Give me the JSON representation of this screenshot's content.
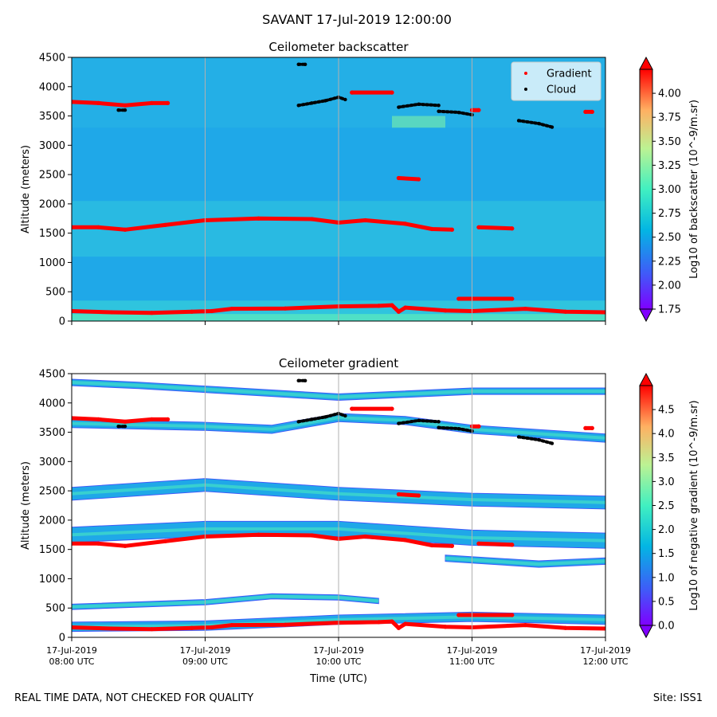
{
  "title": "SAVANT 17-Jul-2019 12:00:00",
  "footer": {
    "left": "REAL TIME DATA, NOT CHECKED FOR QUALITY",
    "right": "Site: ISS1"
  },
  "colors": {
    "gradient": "#ff0000",
    "cloud": "#000000",
    "background": "#1fa8e8"
  },
  "x_tick_date": "17-Jul-2019",
  "chart_data": [
    {
      "type": "heatmap",
      "title": "Ceilometer backscatter",
      "xlabel": "",
      "ylabel": "Altitude (meters)",
      "xlim": [
        8,
        12
      ],
      "ylim": [
        0,
        4500
      ],
      "yticks": [
        0,
        500,
        1000,
        1500,
        2000,
        2500,
        3000,
        3500,
        4000,
        4500
      ],
      "xticks": [
        {
          "value": 8,
          "label": "08:00 UTC"
        },
        {
          "value": 9,
          "label": "09:00 UTC"
        },
        {
          "value": 10,
          "label": "10:00 UTC"
        },
        {
          "value": 11,
          "label": "11:00 UTC"
        },
        {
          "value": 12,
          "label": "12:00 UTC"
        }
      ],
      "grid_x": true,
      "legend": {
        "placement": "top-right",
        "entries": [
          "Gradient",
          "Cloud"
        ]
      },
      "colorbar": {
        "label": "Log10 of backscatter (10^-9/m.sr)",
        "range": [
          1.75,
          4.25
        ],
        "ticks": [
          "1.75",
          "2.00",
          "2.25",
          "2.50",
          "2.75",
          "3.00",
          "3.25",
          "3.50",
          "3.75",
          "4.00"
        ]
      },
      "series": [
        {
          "name": "Gradient",
          "layer": "surface",
          "points": [
            [
              8,
              170
            ],
            [
              8.3,
              150
            ],
            [
              8.6,
              140
            ],
            [
              8.9,
              160
            ],
            [
              9.05,
              170
            ],
            [
              9.2,
              210
            ],
            [
              9.6,
              215
            ],
            [
              10.0,
              250
            ],
            [
              10.3,
              260
            ],
            [
              10.4,
              270
            ],
            [
              10.45,
              160
            ],
            [
              10.5,
              230
            ],
            [
              10.8,
              180
            ],
            [
              11.0,
              170
            ],
            [
              11.4,
              210
            ],
            [
              11.7,
              160
            ],
            [
              12.0,
              150
            ]
          ]
        },
        {
          "name": "Gradient",
          "layer": "boundary",
          "points": [
            [
              8,
              1600
            ],
            [
              8.2,
              1600
            ],
            [
              8.4,
              1560
            ],
            [
              8.7,
              1640
            ],
            [
              9.0,
              1720
            ],
            [
              9.4,
              1750
            ],
            [
              9.8,
              1740
            ],
            [
              10.0,
              1680
            ],
            [
              10.2,
              1720
            ],
            [
              10.5,
              1660
            ],
            [
              10.7,
              1570
            ],
            [
              10.85,
              1560
            ]
          ]
        },
        {
          "name": "Gradient",
          "layer": "boundary-b",
          "points": [
            [
              11.05,
              1600
            ],
            [
              11.3,
              1580
            ]
          ]
        },
        {
          "name": "Gradient",
          "layer": "mid",
          "points": [
            [
              10.45,
              2440
            ],
            [
              10.6,
              2420
            ]
          ]
        },
        {
          "name": "Gradient",
          "layer": "low-b",
          "points": [
            [
              10.9,
              380
            ],
            [
              11.3,
              380
            ]
          ]
        },
        {
          "name": "Gradient",
          "layer": "upper",
          "points": [
            [
              8,
              3740
            ],
            [
              8.2,
              3720
            ],
            [
              8.4,
              3680
            ],
            [
              8.6,
              3720
            ],
            [
              8.72,
              3720
            ]
          ]
        },
        {
          "name": "Gradient",
          "layer": "upper-b",
          "points": [
            [
              10.1,
              3900
            ],
            [
              10.4,
              3900
            ]
          ]
        },
        {
          "name": "Gradient",
          "layer": "upper-c",
          "points": [
            [
              11.0,
              3600
            ],
            [
              11.05,
              3600
            ]
          ]
        },
        {
          "name": "Gradient",
          "layer": "upper-d",
          "points": [
            [
              11.85,
              3570
            ],
            [
              11.9,
              3570
            ]
          ]
        },
        {
          "name": "Cloud",
          "layer": "cloud-a",
          "points": [
            [
              9.7,
              3680
            ],
            [
              9.8,
              3720
            ],
            [
              9.9,
              3760
            ],
            [
              10.0,
              3820
            ],
            [
              10.05,
              3780
            ]
          ]
        },
        {
          "name": "Cloud",
          "layer": "cloud-b",
          "points": [
            [
              10.45,
              3650
            ],
            [
              10.6,
              3700
            ],
            [
              10.75,
              3680
            ]
          ]
        },
        {
          "name": "Cloud",
          "layer": "cloud-c",
          "points": [
            [
              10.75,
              3580
            ],
            [
              10.9,
              3560
            ],
            [
              11.0,
              3520
            ]
          ]
        },
        {
          "name": "Cloud",
          "layer": "cloud-d",
          "points": [
            [
              11.35,
              3420
            ],
            [
              11.5,
              3370
            ],
            [
              11.6,
              3310
            ]
          ]
        },
        {
          "name": "Cloud",
          "layer": "cloud-e",
          "points": [
            [
              9.7,
              4380
            ],
            [
              9.75,
              4380
            ]
          ]
        },
        {
          "name": "Cloud",
          "layer": "cloud-f",
          "points": [
            [
              8.35,
              3600
            ],
            [
              8.4,
              3600
            ]
          ]
        }
      ]
    },
    {
      "type": "heatmap",
      "title": "Ceilometer gradient",
      "xlabel": "Time (UTC)",
      "ylabel": "Altitude (meters)",
      "xlim": [
        8,
        12
      ],
      "ylim": [
        0,
        4500
      ],
      "yticks": [
        0,
        500,
        1000,
        1500,
        2000,
        2500,
        3000,
        3500,
        4000,
        4500
      ],
      "xticks": [
        {
          "value": 8,
          "label": "08:00 UTC"
        },
        {
          "value": 9,
          "label": "09:00 UTC"
        },
        {
          "value": 10,
          "label": "10:00 UTC"
        },
        {
          "value": 11,
          "label": "11:00 UTC"
        },
        {
          "value": 12,
          "label": "12:00 UTC"
        }
      ],
      "grid_x": true,
      "colorbar": {
        "label": "Log10 of negative gradient (10^-9/m.sr)",
        "range": [
          0,
          5
        ],
        "ticks": [
          "0.0",
          "0.5",
          "1.0",
          "1.5",
          "2.0",
          "2.5",
          "3.0",
          "3.5",
          "4.0",
          "4.5"
        ]
      }
    }
  ]
}
